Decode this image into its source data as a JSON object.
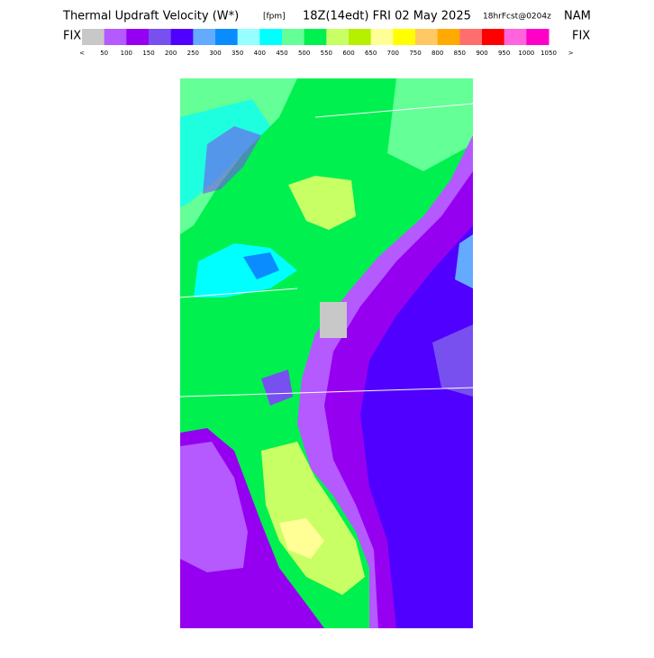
{
  "header": {
    "title": "Thermal Updraft Velocity (W*)",
    "units": "[fpm]",
    "time": "18Z(14edt) FRI 02 May 2025",
    "forecast": "18hrFcst@0204z",
    "model": "NAM"
  },
  "colorbar": {
    "left_label": "FIX",
    "right_label": "FIX",
    "low_arrow": "<",
    "high_arrow": ">",
    "colors": [
      "#c8c8c8",
      "#b45aff",
      "#9600f0",
      "#7850f0",
      "#5000ff",
      "#64aaff",
      "#0a8cff",
      "#96ffff",
      "#00ffff",
      "#64ff96",
      "#00f050",
      "#c8ff64",
      "#b4f000",
      "#ffff96",
      "#ffff00",
      "#ffc864",
      "#ffaa00",
      "#ff6e6e",
      "#ff0000",
      "#ff64dc",
      "#ff00c8"
    ],
    "labels": [
      "50",
      "100",
      "150",
      "200",
      "250",
      "300",
      "350",
      "400",
      "450",
      "500",
      "550",
      "600",
      "650",
      "700",
      "750",
      "800",
      "850",
      "900",
      "950",
      "1000",
      "1050"
    ]
  }
}
